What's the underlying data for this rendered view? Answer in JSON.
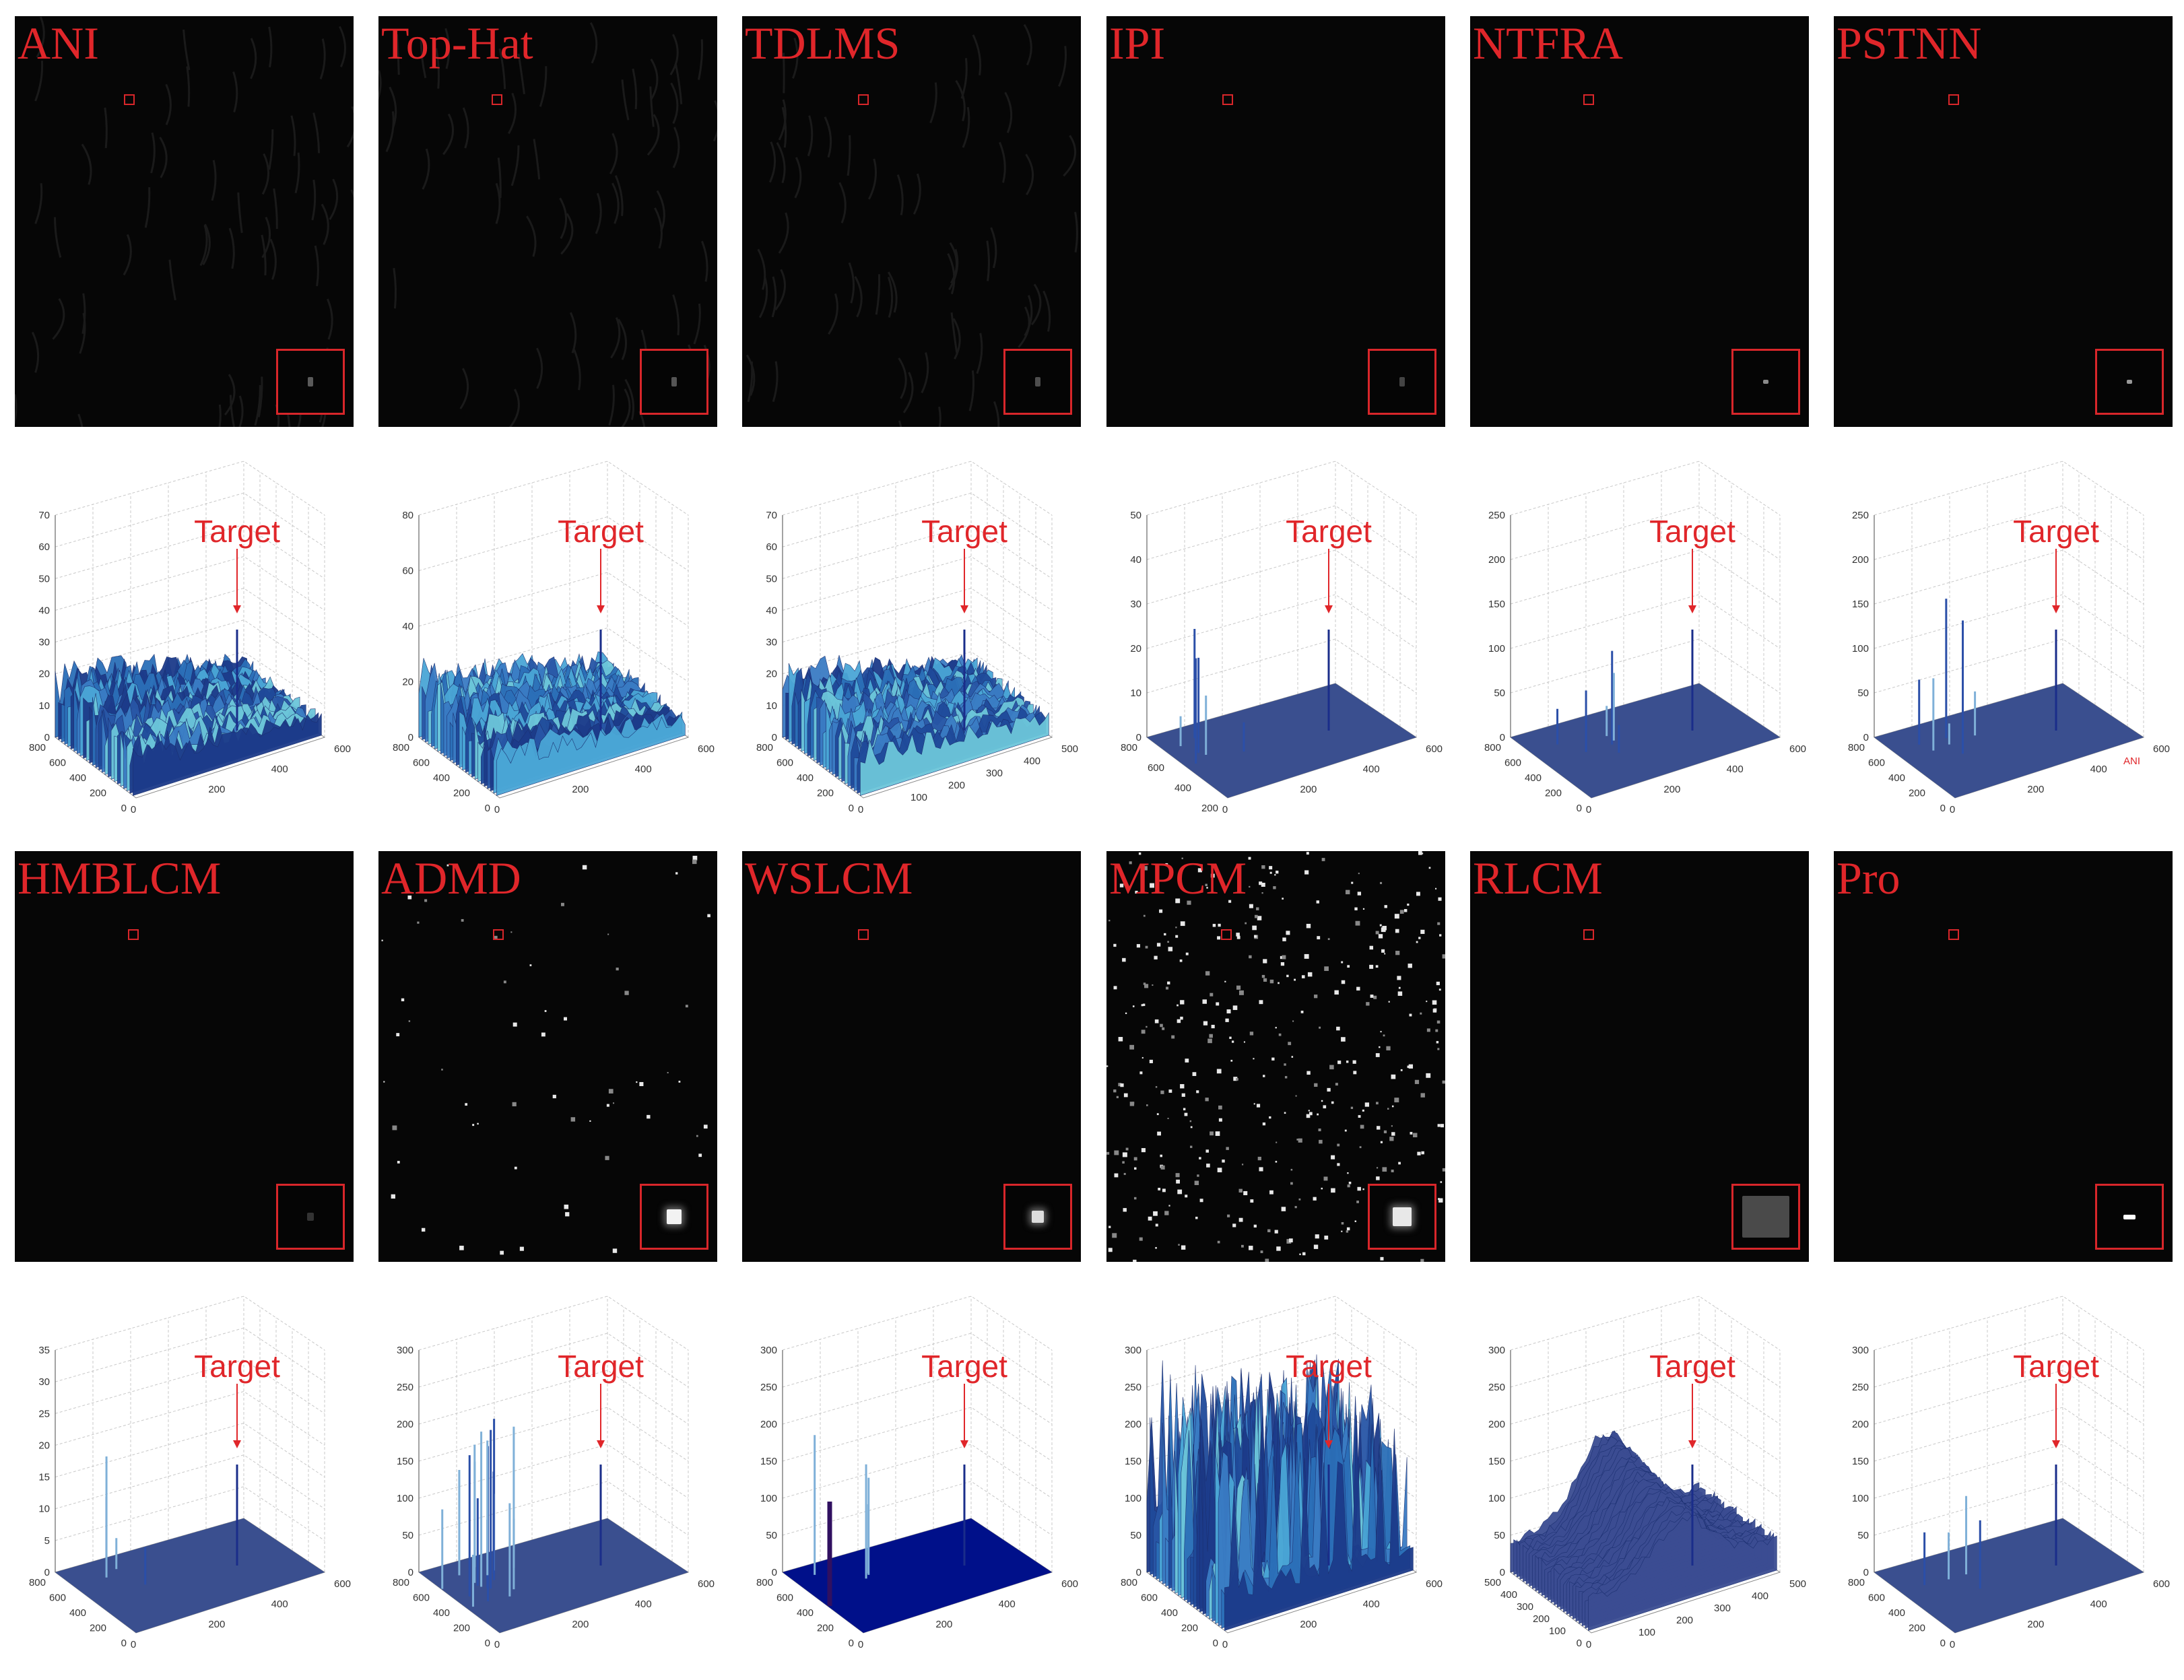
{
  "figure": {
    "target_label": "Target",
    "panels": [
      {
        "label": "ANI"
      },
      {
        "label": "Top-Hat"
      },
      {
        "label": "TDLMS"
      },
      {
        "label": "IPI"
      },
      {
        "label": "NTFRA"
      },
      {
        "label": "PSTNN"
      },
      {
        "label": "HMBLCM"
      },
      {
        "label": "ADMD"
      },
      {
        "label": "WSLCM"
      },
      {
        "label": "MPCM"
      },
      {
        "label": "RLCM"
      },
      {
        "label": "Pro"
      }
    ],
    "plots": [
      {
        "z_ticks": [
          "0",
          "10",
          "20",
          "30",
          "40",
          "50",
          "60",
          "70"
        ],
        "y_ticks": [
          "0",
          "200",
          "400",
          "600",
          "800"
        ],
        "x_ticks": [
          "200",
          "400",
          "600"
        ],
        "style": "dense"
      },
      {
        "z_ticks": [
          "0",
          "20",
          "40",
          "60",
          "80"
        ],
        "y_ticks": [
          "0",
          "200",
          "400",
          "600",
          "800"
        ],
        "x_ticks": [
          "200",
          "400",
          "600"
        ],
        "style": "dense"
      },
      {
        "z_ticks": [
          "0",
          "10",
          "20",
          "30",
          "40",
          "50",
          "60",
          "70"
        ],
        "y_ticks": [
          "0",
          "200",
          "400",
          "600",
          "800"
        ],
        "x_ticks": [
          "100",
          "200",
          "300",
          "400",
          "500"
        ],
        "style": "dense"
      },
      {
        "z_ticks": [
          "0",
          "10",
          "20",
          "30",
          "40",
          "50"
        ],
        "y_ticks": [
          "200",
          "400",
          "600",
          "800"
        ],
        "x_ticks": [
          "200",
          "400",
          "600"
        ],
        "style": "sparse"
      },
      {
        "z_ticks": [
          "0",
          "50",
          "100",
          "150",
          "200",
          "250"
        ],
        "y_ticks": [
          "0",
          "200",
          "400",
          "600",
          "800"
        ],
        "x_ticks": [
          "200",
          "400",
          "600"
        ],
        "style": "sparse"
      },
      {
        "z_ticks": [
          "0",
          "50",
          "100",
          "150",
          "200",
          "250"
        ],
        "y_ticks": [
          "0",
          "200",
          "400",
          "600",
          "800"
        ],
        "x_ticks": [
          "200",
          "400",
          "600"
        ],
        "style": "sparse",
        "extra_label": "ANI"
      },
      {
        "z_ticks": [
          "0",
          "5",
          "10",
          "15",
          "20",
          "25",
          "30",
          "35"
        ],
        "y_ticks": [
          "0",
          "200",
          "400",
          "600",
          "800"
        ],
        "x_ticks": [
          "200",
          "400",
          "600"
        ],
        "style": "flat"
      },
      {
        "z_ticks": [
          "0",
          "50",
          "100",
          "150",
          "200",
          "250",
          "300"
        ],
        "y_ticks": [
          "0",
          "200",
          "400",
          "600",
          "800"
        ],
        "x_ticks": [
          "200",
          "400",
          "600"
        ],
        "style": "spikes"
      },
      {
        "z_ticks": [
          "0",
          "50",
          "100",
          "150",
          "200",
          "250",
          "300"
        ],
        "y_ticks": [
          "0",
          "200",
          "400",
          "600",
          "800"
        ],
        "x_ticks": [
          "200",
          "400",
          "600"
        ],
        "style": "dark"
      },
      {
        "z_ticks": [
          "0",
          "50",
          "100",
          "150",
          "200",
          "250",
          "300"
        ],
        "y_ticks": [
          "0",
          "200",
          "400",
          "600",
          "800"
        ],
        "x_ticks": [
          "200",
          "400",
          "600"
        ],
        "style": "dense-spikes"
      },
      {
        "z_ticks": [
          "0",
          "50",
          "100",
          "150",
          "200",
          "250",
          "300"
        ],
        "y_ticks": [
          "0",
          "100",
          "200",
          "300",
          "400",
          "500"
        ],
        "x_ticks": [
          "100",
          "200",
          "300",
          "400",
          "500"
        ],
        "style": "hill"
      },
      {
        "z_ticks": [
          "0",
          "50",
          "100",
          "150",
          "200",
          "250",
          "300"
        ],
        "y_ticks": [
          "0",
          "200",
          "400",
          "600",
          "800"
        ],
        "x_ticks": [
          "200",
          "400",
          "600"
        ],
        "style": "flat"
      }
    ]
  }
}
